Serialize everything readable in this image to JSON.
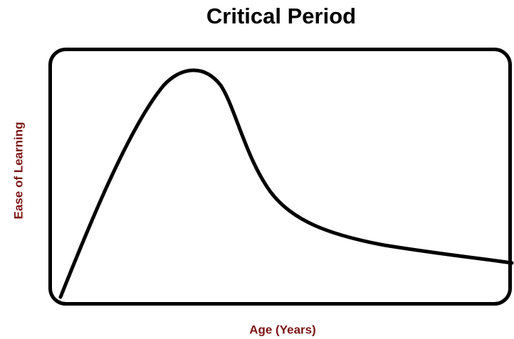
{
  "title": "Critical Period",
  "y_label": "Ease of Learning",
  "x_label": "Age (Years)"
}
